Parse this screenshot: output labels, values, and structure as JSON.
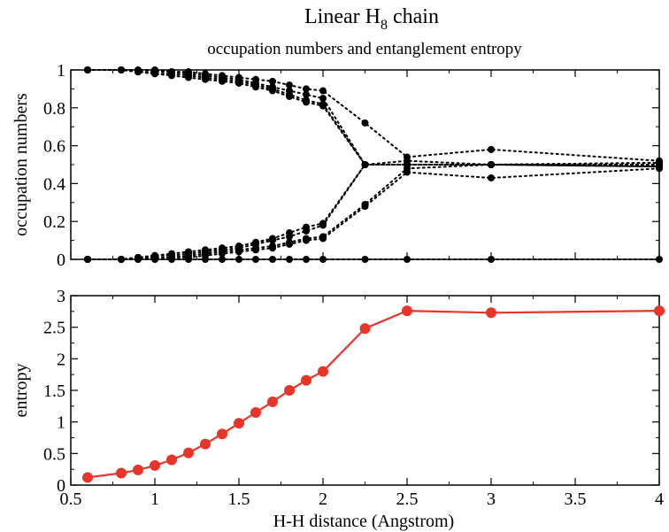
{
  "figure": {
    "title": "Linear H",
    "title_subscript": "8",
    "title_suffix": " chain",
    "subtitle": "occupation numbers and entanglement entropy"
  },
  "chart_data": [
    {
      "type": "scatter",
      "name": "occupation-numbers-panel",
      "line_style": "dotted",
      "marker_color": "#000000",
      "xlabel": "",
      "ylabel": "occupation numbers",
      "xlim": [
        0.5,
        4
      ],
      "ylim": [
        0,
        1
      ],
      "yticks": [
        0,
        0.2,
        0.4,
        0.6,
        0.8,
        1
      ],
      "ytick_labels": [
        "0",
        "0.2",
        "0.4",
        "0.6",
        "0.8",
        "1"
      ],
      "x": [
        0.6,
        0.8,
        0.9,
        1.0,
        1.1,
        1.2,
        1.3,
        1.4,
        1.5,
        1.6,
        1.7,
        1.8,
        1.9,
        2.0,
        2.25,
        2.5,
        3.0,
        4.0
      ],
      "series": [
        {
          "values": [
            1.0,
            1.0,
            1.0,
            1.0,
            0.99,
            0.99,
            0.98,
            0.97,
            0.96,
            0.95,
            0.94,
            0.92,
            0.9,
            0.89,
            0.72,
            0.54,
            0.58,
            0.52
          ]
        },
        {
          "values": [
            1.0,
            1.0,
            0.99,
            0.99,
            0.99,
            0.98,
            0.97,
            0.96,
            0.95,
            0.93,
            0.91,
            0.89,
            0.87,
            0.85,
            0.5,
            0.52,
            0.5,
            0.51
          ]
        },
        {
          "values": [
            1.0,
            1.0,
            0.99,
            0.98,
            0.98,
            0.97,
            0.96,
            0.95,
            0.94,
            0.92,
            0.9,
            0.87,
            0.84,
            0.82,
            0.5,
            0.5,
            0.5,
            0.5
          ]
        },
        {
          "values": [
            1.0,
            1.0,
            0.99,
            0.98,
            0.97,
            0.96,
            0.95,
            0.94,
            0.93,
            0.91,
            0.89,
            0.86,
            0.83,
            0.81,
            0.5,
            0.5,
            0.5,
            0.49
          ]
        },
        {
          "values": [
            0.0,
            0.0,
            0.01,
            0.02,
            0.03,
            0.04,
            0.05,
            0.06,
            0.07,
            0.09,
            0.11,
            0.14,
            0.17,
            0.19,
            0.5,
            0.5,
            0.5,
            0.51
          ]
        },
        {
          "values": [
            0.0,
            0.0,
            0.01,
            0.02,
            0.02,
            0.03,
            0.04,
            0.05,
            0.06,
            0.08,
            0.1,
            0.12,
            0.15,
            0.18,
            0.5,
            0.5,
            0.5,
            0.5
          ]
        },
        {
          "values": [
            0.0,
            0.0,
            0.01,
            0.01,
            0.01,
            0.02,
            0.03,
            0.04,
            0.05,
            0.06,
            0.07,
            0.09,
            0.11,
            0.12,
            0.29,
            0.48,
            0.5,
            0.49
          ]
        },
        {
          "values": [
            0.0,
            0.0,
            0.0,
            0.01,
            0.01,
            0.01,
            0.02,
            0.03,
            0.04,
            0.05,
            0.06,
            0.08,
            0.1,
            0.11,
            0.28,
            0.46,
            0.43,
            0.48
          ]
        },
        {
          "values": [
            0.0,
            0.0,
            0.0,
            0.0,
            0.0,
            0.0,
            0.0,
            0.0,
            0.0,
            0.0,
            0.0,
            0.0,
            0.0,
            0.0,
            0.0,
            0.0,
            0.0,
            0.0
          ]
        }
      ]
    },
    {
      "type": "line",
      "name": "entropy-panel",
      "color": "#e8352a",
      "xlabel": "H-H distance (Angstrom)",
      "ylabel": "entropy",
      "xlim": [
        0.5,
        4
      ],
      "ylim": [
        0,
        3
      ],
      "xticks": [
        0.5,
        1,
        1.5,
        2,
        2.5,
        3,
        3.5,
        4
      ],
      "xtick_labels": [
        "0.5",
        "1",
        "1.5",
        "2",
        "2.5",
        "3",
        "3.5",
        "4"
      ],
      "yticks": [
        0,
        0.5,
        1,
        1.5,
        2,
        2.5,
        3
      ],
      "ytick_labels": [
        "0",
        "0.5",
        "1",
        "1.5",
        "2",
        "2.5",
        "3"
      ],
      "x": [
        0.6,
        0.8,
        0.9,
        1.0,
        1.1,
        1.2,
        1.3,
        1.4,
        1.5,
        1.6,
        1.7,
        1.8,
        1.9,
        2.0,
        2.25,
        2.5,
        3.0,
        4.0
      ],
      "values": [
        0.12,
        0.19,
        0.24,
        0.31,
        0.4,
        0.51,
        0.65,
        0.81,
        0.98,
        1.15,
        1.32,
        1.5,
        1.66,
        1.8,
        2.48,
        2.76,
        2.73,
        2.76
      ]
    }
  ]
}
